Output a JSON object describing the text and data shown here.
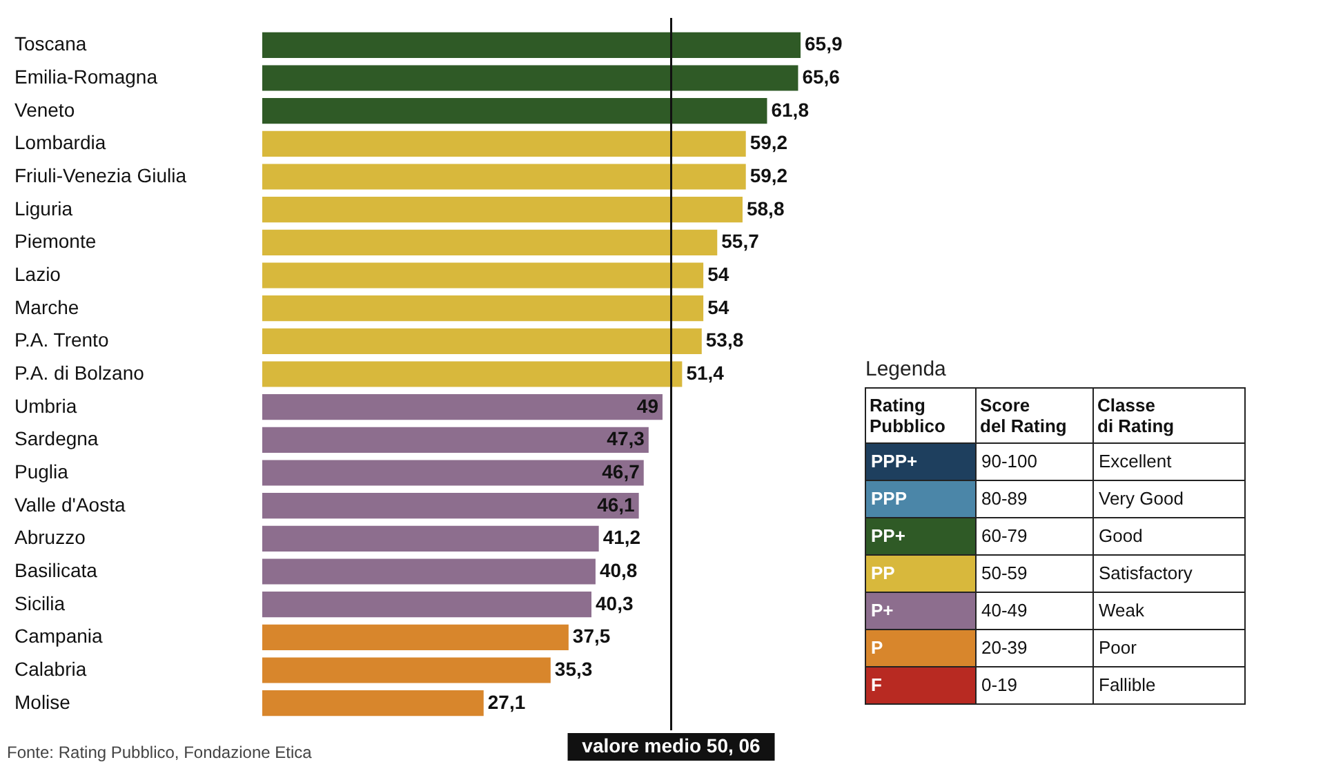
{
  "chart_data": [
    {
      "type": "bar",
      "orientation": "horizontal",
      "categories": [
        "Toscana",
        "Emilia-Romagna",
        "Veneto",
        "Lombardia",
        "Friuli-Venezia Giulia",
        "Liguria",
        "Piemonte",
        "Lazio",
        "Marche",
        "P.A. Trento",
        "P.A. di Bolzano",
        "Umbria",
        "Sardegna",
        "Puglia",
        "Valle d'Aosta",
        "Abruzzo",
        "Basilicata",
        "Sicilia",
        "Campania",
        "Calabria",
        "Molise"
      ],
      "values": [
        65.9,
        65.6,
        61.8,
        59.2,
        59.2,
        58.8,
        55.7,
        54,
        54,
        53.8,
        51.4,
        49,
        47.3,
        46.7,
        46.1,
        41.2,
        40.8,
        40.3,
        37.5,
        35.3,
        27.1
      ],
      "value_labels": [
        "65,9",
        "65,6",
        "61,8",
        "59,2",
        "59,2",
        "58,8",
        "55,7",
        "54",
        "54",
        "53,8",
        "51,4",
        "49",
        "47,3",
        "46,7",
        "46,1",
        "41,2",
        "40,8",
        "40,3",
        "37,5",
        "35,3",
        "27,1"
      ],
      "colors": [
        "#2f5a26",
        "#2f5a26",
        "#2f5a26",
        "#d8b83c",
        "#d8b83c",
        "#d8b83c",
        "#d8b83c",
        "#d8b83c",
        "#d8b83c",
        "#d8b83c",
        "#d8b83c",
        "#8d6e8e",
        "#8d6e8e",
        "#8d6e8e",
        "#8d6e8e",
        "#8d6e8e",
        "#8d6e8e",
        "#8d6e8e",
        "#d8862c",
        "#d8862c",
        "#d8862c"
      ],
      "ref_lines": [
        {
          "axis": "x",
          "value": 50.06,
          "label": "valore medio 50, 06",
          "color": "#111111"
        }
      ],
      "annotations": [
        "Fonte: Rating Pubblico, Fondazione Etica"
      ]
    },
    {
      "type": "other",
      "title": "Legenda",
      "categories": [
        "PPP+",
        "PPP",
        "PP+",
        "PP",
        "P+",
        "P",
        "F"
      ],
      "colors": [
        "#1e3f5e",
        "#4b86a8",
        "#2f5a26",
        "#d8b83c",
        "#8d6e8e",
        "#d8862c",
        "#b82a22"
      ],
      "annotations": [
        "Rating Pubblico",
        "Score del Rating",
        "Classe di Rating",
        "90-100",
        "Excellent",
        "80-89",
        "Very Good",
        "60-79",
        "Good",
        "50-59",
        "Satisfactory",
        "40-49",
        "Weak",
        "20-39",
        "Poor",
        "0-19",
        "Fallible"
      ]
    }
  ]
}
